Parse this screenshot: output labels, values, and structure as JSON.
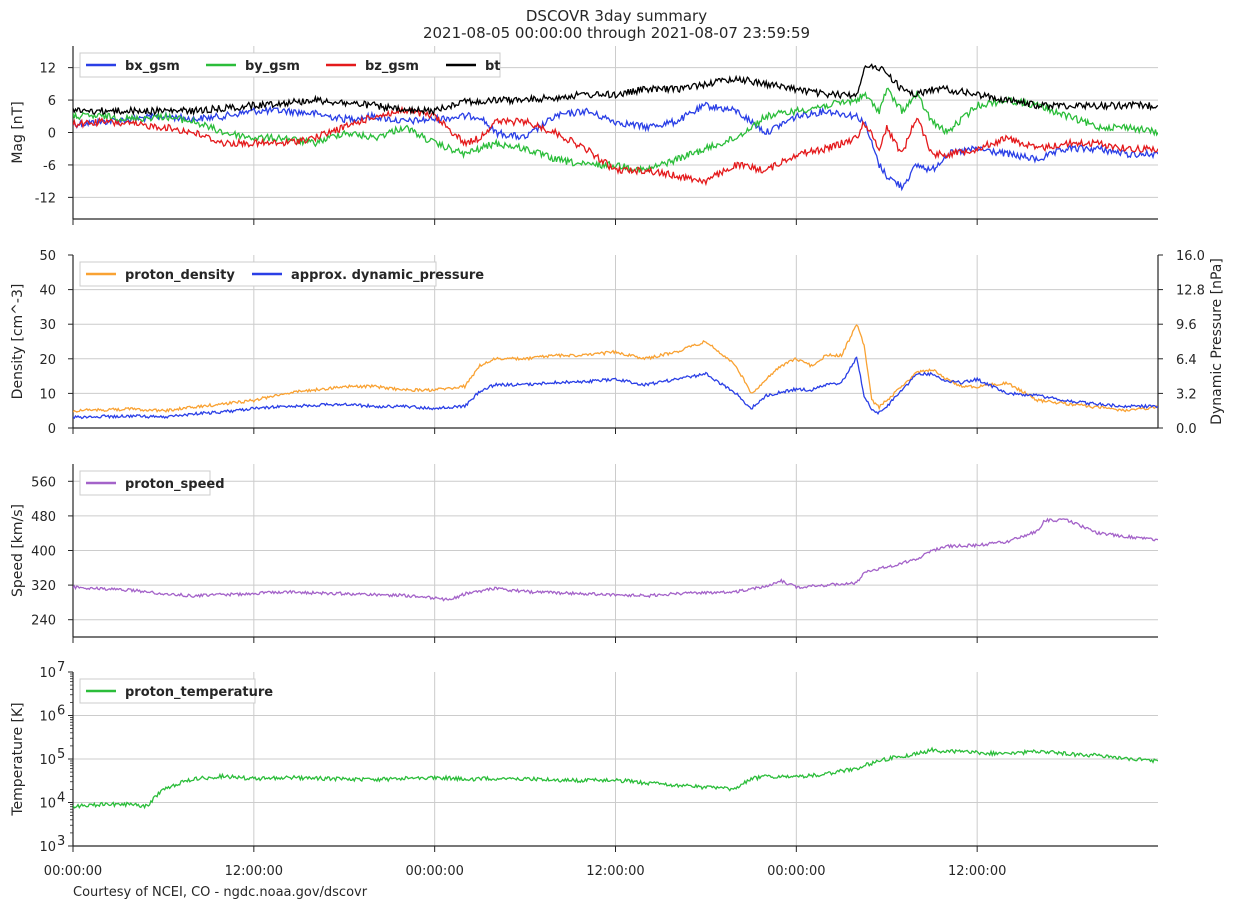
{
  "title": "DSCOVR 3day summary",
  "subtitle": "2021-08-05 00:00:00 through 2021-08-07 23:59:59",
  "footer": "Courtesy of NCEI, CO - ngdc.noaa.gov/dscovr",
  "x_tick_labels": [
    "00:00:00",
    "12:00:00",
    "00:00:00",
    "12:00:00",
    "00:00:00",
    "12:00:00"
  ],
  "chart_data": [
    {
      "type": "line",
      "id": "mag",
      "ylabel": "Mag   [nT]",
      "ylim": [
        -16,
        16
      ],
      "yticks": [
        -12,
        -6,
        0,
        6,
        12
      ],
      "xlim": [
        0,
        72
      ],
      "grid": true,
      "legend": "top-left",
      "series": [
        {
          "name": "bx_gsm",
          "color": "#2a3fe6",
          "x": [
            0,
            2,
            4,
            6,
            8,
            10,
            12,
            14,
            16,
            18,
            20,
            22,
            24,
            26,
            27,
            28,
            30,
            32,
            34,
            36,
            38,
            40,
            42,
            44,
            46,
            48,
            50,
            52,
            52.5,
            53.5,
            54,
            55,
            56,
            57,
            58,
            60,
            62,
            64,
            66,
            68,
            70,
            72
          ],
          "y": [
            1.5,
            2,
            2.5,
            3,
            2.5,
            3,
            4,
            4,
            3.5,
            2.5,
            3,
            2,
            2.5,
            3,
            3,
            0,
            -1,
            3,
            4,
            2,
            1,
            2,
            5,
            4,
            0,
            3,
            4,
            3,
            2,
            -6,
            -8,
            -10,
            -6,
            -7,
            -4,
            -3,
            -4,
            -5,
            -3,
            -3,
            -4,
            -4
          ]
        },
        {
          "name": "by_gsm",
          "color": "#2bbd3a",
          "x": [
            0,
            2,
            4,
            6,
            8,
            10,
            12,
            14,
            16,
            18,
            20,
            22,
            24,
            26,
            27,
            28,
            30,
            32,
            34,
            36,
            38,
            40,
            42,
            44,
            46,
            48,
            50,
            52,
            52.5,
            53.5,
            54,
            55,
            56,
            57,
            58,
            60,
            62,
            64,
            66,
            68,
            70,
            72
          ],
          "y": [
            3,
            3,
            2.5,
            3,
            2,
            0,
            -1,
            -1,
            -2,
            0,
            -1,
            1,
            -2,
            -4,
            -3,
            -2,
            -3,
            -5,
            -6,
            -6,
            -7,
            -5,
            -3,
            -1,
            3,
            4,
            5,
            6,
            7,
            4,
            8,
            4,
            7,
            2,
            0,
            5,
            6,
            5,
            3,
            1,
            1,
            0
          ]
        },
        {
          "name": "bz_gsm",
          "color": "#e41a1c",
          "x": [
            0,
            2,
            4,
            6,
            8,
            10,
            12,
            14,
            16,
            18,
            20,
            22,
            24,
            26,
            27,
            28,
            30,
            32,
            34,
            36,
            38,
            40,
            42,
            44,
            46,
            48,
            50,
            52,
            52.5,
            53.5,
            54,
            55,
            56,
            57,
            58,
            60,
            62,
            64,
            66,
            68,
            70,
            72
          ],
          "y": [
            1.5,
            2,
            1.5,
            1,
            0,
            -2,
            -2,
            -2,
            -1,
            1,
            3,
            4,
            3,
            -2,
            -1,
            2,
            2,
            0,
            -3,
            -7,
            -7,
            -8,
            -9,
            -6,
            -7,
            -4,
            -3,
            -1,
            2,
            -3,
            1,
            -4,
            3,
            -4,
            -4,
            -3,
            -1,
            -3,
            -2,
            -2,
            -3,
            -3
          ]
        },
        {
          "name": "bt",
          "color": "#000000",
          "x": [
            0,
            2,
            4,
            6,
            8,
            10,
            12,
            14,
            16,
            18,
            20,
            22,
            24,
            26,
            27,
            28,
            30,
            32,
            34,
            36,
            38,
            40,
            42,
            44,
            46,
            48,
            50,
            52,
            52.5,
            53.5,
            54,
            55,
            56,
            57,
            58,
            60,
            62,
            64,
            66,
            68,
            70,
            72
          ],
          "y": [
            4,
            4,
            4,
            4,
            4,
            4.5,
            5,
            5.5,
            6,
            5.5,
            5,
            4,
            4,
            6,
            5.5,
            6,
            6,
            6.5,
            7,
            7,
            8,
            8,
            9,
            10,
            9,
            8,
            7,
            7,
            12,
            12,
            11,
            8,
            7,
            8,
            8,
            7,
            6,
            5,
            5,
            5,
            5,
            5
          ]
        }
      ]
    },
    {
      "type": "line",
      "id": "plasma",
      "ylabel": "Density   [cm^-3]",
      "ylim": [
        0,
        50
      ],
      "yticks": [
        0,
        10,
        20,
        30,
        40,
        50
      ],
      "y2label": "Dynamic Pressure   [nPa]",
      "y2lim": [
        0,
        16
      ],
      "y2ticks": [
        "0.0",
        "3.2",
        "6.4",
        "9.6",
        "12.8",
        "16.0"
      ],
      "xlim": [
        0,
        72
      ],
      "grid": true,
      "legend": "top-left",
      "series": [
        {
          "name": "proton_density",
          "color": "#f9a233",
          "axis": "left",
          "x": [
            0,
            4,
            6,
            8,
            10,
            12,
            14,
            16,
            18,
            20,
            22,
            24,
            26,
            27,
            28,
            30,
            32,
            34,
            36,
            38,
            40,
            42,
            44,
            45,
            46,
            47,
            48,
            49,
            50,
            51,
            52,
            52.5,
            53,
            53.5,
            54,
            55,
            56,
            57,
            58,
            59,
            60,
            62,
            64,
            66,
            68,
            70,
            72
          ],
          "y": [
            5,
            5.5,
            5,
            6,
            7,
            8,
            10,
            11,
            12,
            12,
            11,
            11,
            12,
            18,
            20,
            20,
            21,
            21,
            22,
            20,
            22,
            25,
            18,
            10,
            14,
            18,
            20,
            18,
            21,
            21,
            30,
            24,
            8,
            6,
            8,
            12,
            16,
            17,
            14,
            12,
            12,
            13,
            8,
            7,
            6,
            5,
            6
          ]
        },
        {
          "name": "approx. dynamic_pressure",
          "color": "#2a3fe6",
          "axis": "right",
          "x": [
            0,
            4,
            6,
            8,
            10,
            12,
            14,
            16,
            18,
            20,
            22,
            24,
            26,
            27,
            28,
            30,
            32,
            34,
            36,
            38,
            40,
            42,
            44,
            45,
            46,
            47,
            48,
            49,
            50,
            51,
            52,
            52.5,
            53,
            53.5,
            54,
            55,
            56,
            57,
            58,
            59,
            60,
            62,
            64,
            66,
            68,
            70,
            72
          ],
          "y": [
            1,
            1.1,
            1,
            1.3,
            1.5,
            1.8,
            2,
            2.1,
            2.2,
            2,
            2,
            1.8,
            2,
            3.4,
            4,
            4,
            4.2,
            4.3,
            4.5,
            4,
            4.5,
            5,
            3.2,
            1.8,
            3,
            3.3,
            3.6,
            3.5,
            4,
            4.2,
            6.5,
            3,
            1.6,
            1.4,
            2,
            3.5,
            5,
            5,
            4.3,
            4.2,
            4.5,
            3.2,
            3,
            2.5,
            2.2,
            2,
            2
          ]
        }
      ]
    },
    {
      "type": "line",
      "id": "speed",
      "ylabel": "Speed   [km/s]",
      "ylim": [
        200,
        600
      ],
      "yticks": [
        240,
        320,
        400,
        480,
        560
      ],
      "xlim": [
        0,
        72
      ],
      "grid": true,
      "legend": "top-left",
      "series": [
        {
          "name": "proton_speed",
          "color": "#a463c9",
          "x": [
            0,
            4,
            6,
            8,
            10,
            12,
            14,
            16,
            18,
            20,
            22,
            24,
            25,
            26,
            28,
            30,
            32,
            34,
            36,
            38,
            40,
            42,
            44,
            46,
            47,
            48,
            50,
            52,
            52.5,
            54,
            56,
            57,
            58,
            60,
            62,
            64,
            64.5,
            66,
            68,
            70,
            72
          ],
          "y": [
            315,
            308,
            300,
            295,
            298,
            300,
            305,
            302,
            300,
            298,
            296,
            290,
            285,
            300,
            312,
            305,
            302,
            300,
            298,
            295,
            300,
            302,
            305,
            318,
            330,
            315,
            320,
            325,
            350,
            362,
            380,
            400,
            410,
            412,
            420,
            445,
            470,
            470,
            440,
            432,
            425
          ]
        }
      ]
    },
    {
      "type": "line",
      "id": "temperature",
      "ylabel": "Temperature   [K]",
      "yscale": "log",
      "ylim": [
        1000,
        10000000
      ],
      "yticks": [
        1000,
        10000,
        100000,
        1000000,
        10000000
      ],
      "xlim": [
        0,
        72
      ],
      "grid": true,
      "legend": "top-left",
      "series": [
        {
          "name": "proton_temperature",
          "color": "#2bbd3a",
          "x": [
            0,
            2,
            4,
            5,
            6,
            8,
            10,
            12,
            14,
            16,
            18,
            20,
            22,
            24,
            26,
            28,
            30,
            32,
            34,
            36,
            38,
            40,
            42,
            44,
            45,
            46,
            48,
            50,
            52,
            54,
            56,
            57,
            58,
            60,
            62,
            64,
            66,
            68,
            70,
            72
          ],
          "y": [
            8000,
            9000,
            9000,
            8000,
            20000,
            35000,
            40000,
            35000,
            38000,
            36000,
            35000,
            33000,
            36000,
            38000,
            34000,
            36000,
            35000,
            33000,
            32000,
            33000,
            28000,
            25000,
            22000,
            20000,
            35000,
            40000,
            38000,
            45000,
            60000,
            100000,
            130000,
            160000,
            150000,
            140000,
            130000,
            150000,
            130000,
            120000,
            100000,
            90000
          ]
        }
      ]
    }
  ]
}
